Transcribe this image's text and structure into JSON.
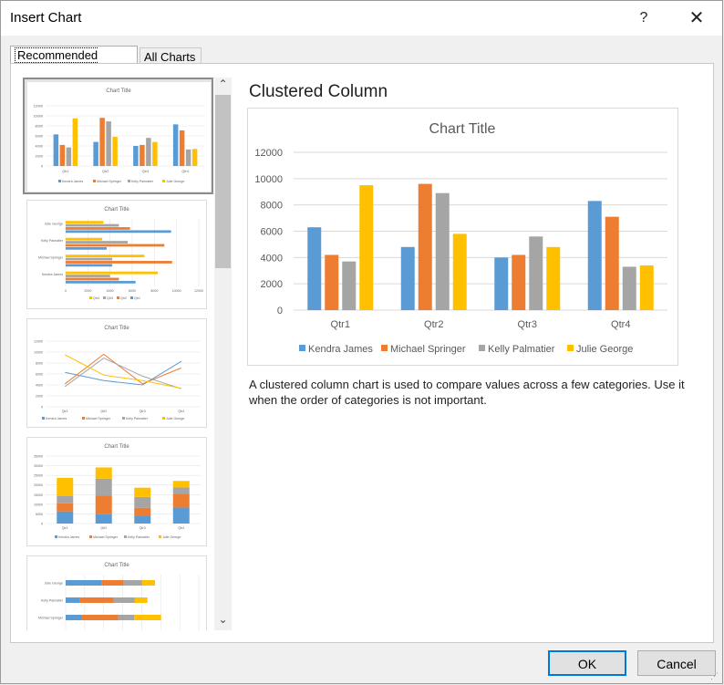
{
  "window": {
    "title": "Insert Chart",
    "help": "?",
    "close": "✕"
  },
  "tabs": {
    "recommended": "Recommended Charts",
    "all": "All Charts"
  },
  "preview": {
    "title": "Clustered Column",
    "description": "A clustered column chart is used to compare values across a few categories. Use it when the order of categories is not important."
  },
  "buttons": {
    "ok": "OK",
    "cancel": "Cancel"
  },
  "scrollbar": {
    "up": "⌃",
    "down": "⌄"
  },
  "thumbnail_labels": {
    "chart_title": "Chart Title",
    "qtr_series": [
      "Qtr4",
      "Qtr3",
      "Qtr2",
      "Qtr1"
    ],
    "bar_axis": [
      "0",
      "2000",
      "4000",
      "6000",
      "8000",
      "10000",
      "12000"
    ],
    "stacked_axis": [
      "0",
      "5000",
      "10000",
      "15000",
      "20000",
      "25000",
      "30000",
      "35000"
    ]
  },
  "colors": {
    "Kendra James": "#5b9bd5",
    "Michael Springer": "#ed7d31",
    "Kelly Palmatier": "#a5a5a5",
    "Julie George": "#ffc000",
    "Qtr1": "#5b9bd5",
    "Qtr2": "#ed7d31",
    "Qtr3": "#a5a5a5",
    "Qtr4": "#ffc000",
    "accent": "#0078d7"
  },
  "chart_data": {
    "type": "bar",
    "title": "Chart Title",
    "categories": [
      "Qtr1",
      "Qtr2",
      "Qtr3",
      "Qtr4"
    ],
    "series": [
      {
        "name": "Kendra James",
        "values": [
          6300,
          4800,
          4000,
          8300
        ]
      },
      {
        "name": "Michael Springer",
        "values": [
          4200,
          9600,
          4200,
          7100
        ]
      },
      {
        "name": "Kelly Palmatier",
        "values": [
          3700,
          8900,
          5600,
          3300
        ]
      },
      {
        "name": "Julie George",
        "values": [
          9500,
          5800,
          4800,
          3400
        ]
      }
    ],
    "yticks": [
      "0",
      "2000",
      "4000",
      "6000",
      "8000",
      "10000",
      "12000"
    ],
    "ylim": [
      0,
      12000
    ],
    "grid": true,
    "legend": "bottom"
  }
}
